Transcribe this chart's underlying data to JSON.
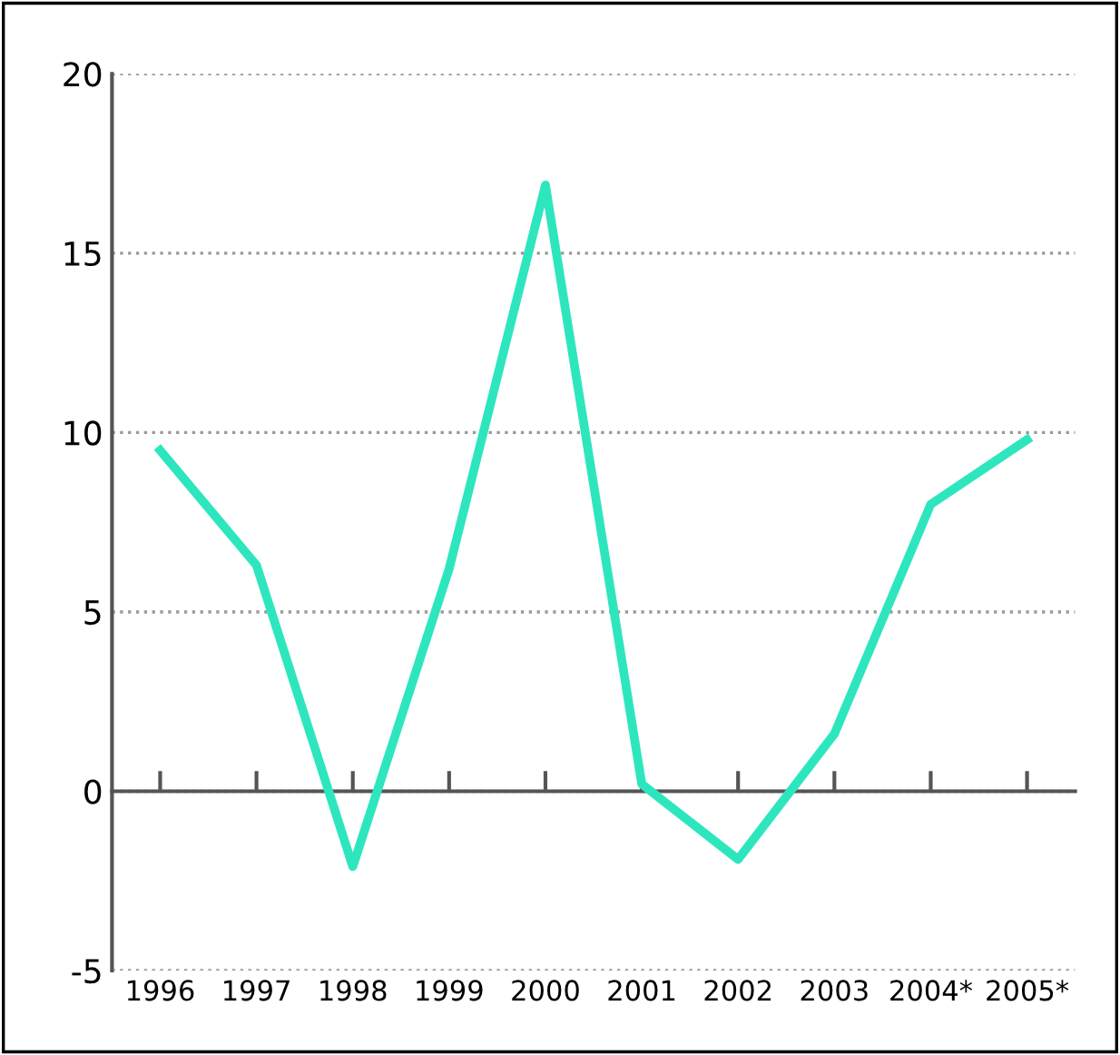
{
  "chart_data": {
    "type": "line",
    "categories": [
      "1996",
      "1997",
      "1998",
      "1999",
      "2000",
      "2001",
      "2002",
      "2003",
      "2004*",
      "2005*"
    ],
    "series": [
      {
        "color": "#2ee6be",
        "values": [
          9.5,
          6.3,
          -2.1,
          6.2,
          16.9,
          0.2,
          -1.9,
          1.6,
          8.0,
          9.8
        ]
      }
    ],
    "ylim": [
      -5,
      20
    ],
    "yticks": [
      -5,
      0,
      5,
      10,
      15,
      20
    ],
    "grid": "y",
    "marker": "none",
    "line_style": "solid",
    "legend": false
  }
}
